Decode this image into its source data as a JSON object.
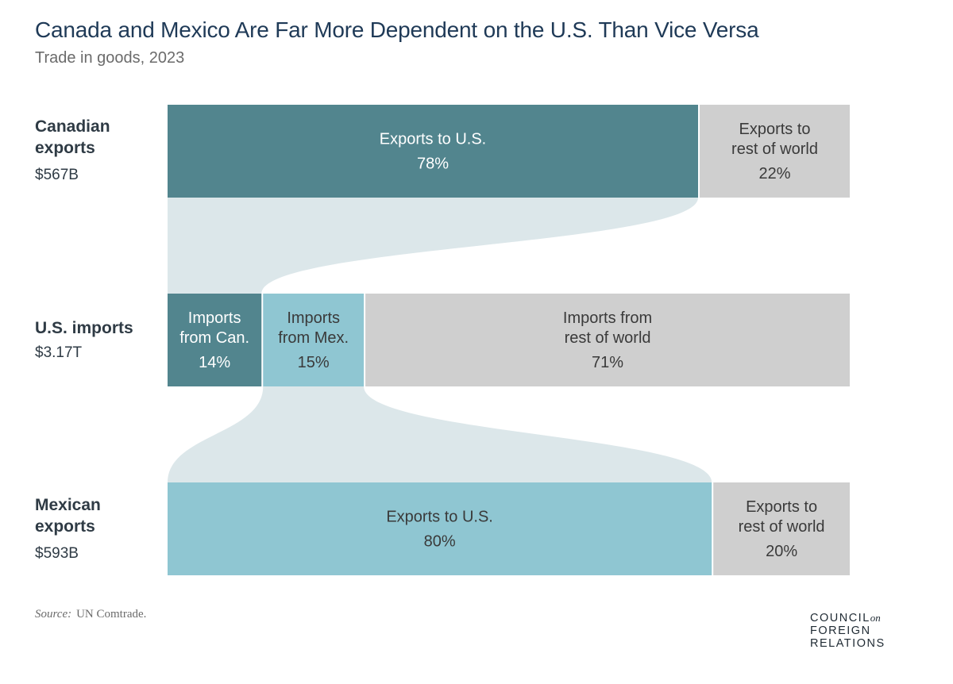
{
  "title": "Canada and Mexico Are Far More Dependent on the U.S. Than Vice Versa",
  "subtitle": "Trade in goods, 2023",
  "rows": {
    "canada": {
      "name_line1": "Canadian",
      "name_line2": "exports",
      "total": "$567B"
    },
    "us": {
      "name_line1": "U.S. imports",
      "total": "$3.17T"
    },
    "mexico": {
      "name_line1": "Mexican",
      "name_line2": "exports",
      "total": "$593B"
    }
  },
  "colors": {
    "canada_dark": "#52858e",
    "mexico_light": "#8fc6d2",
    "rest_gray": "#cfcfcf",
    "flow": "#dce7ea",
    "text_on_dark": "#ffffff",
    "text_on_light": "#3a3a3a"
  },
  "chart_data": {
    "type": "bar",
    "subtype": "stacked-100-percent-with-flows",
    "title": "Canada and Mexico Are Far More Dependent on the U.S. Than Vice Versa",
    "subtitle": "Trade in goods, 2023",
    "bars": [
      {
        "label": "Canadian exports",
        "total": "$567B",
        "segments": [
          {
            "lines": [
              "Exports to U.S."
            ],
            "pct_label": "78%",
            "value": 78,
            "color": "#52858e",
            "text_color": "#ffffff"
          },
          {
            "lines": [
              "Exports to",
              "rest of world"
            ],
            "pct_label": "22%",
            "value": 22,
            "color": "#cfcfcf",
            "text_color": "#3a3a3a"
          }
        ]
      },
      {
        "label": "U.S. imports",
        "total": "$3.17T",
        "segments": [
          {
            "lines": [
              "Imports",
              "from Can."
            ],
            "pct_label": "14%",
            "value": 14,
            "color": "#52858e",
            "text_color": "#ffffff"
          },
          {
            "lines": [
              "Imports",
              "from Mex."
            ],
            "pct_label": "15%",
            "value": 15,
            "color": "#8fc6d2",
            "text_color": "#3a3a3a"
          },
          {
            "lines": [
              "Imports from",
              "rest of world"
            ],
            "pct_label": "71%",
            "value": 71,
            "color": "#cfcfcf",
            "text_color": "#3a3a3a"
          }
        ]
      },
      {
        "label": "Mexican exports",
        "total": "$593B",
        "segments": [
          {
            "lines": [
              "Exports to U.S."
            ],
            "pct_label": "80%",
            "value": 80,
            "color": "#8fc6d2",
            "text_color": "#3a3a3a"
          },
          {
            "lines": [
              "Exports to",
              "rest of world"
            ],
            "pct_label": "20%",
            "value": 20,
            "color": "#cfcfcf",
            "text_color": "#3a3a3a"
          }
        ]
      }
    ],
    "flows": [
      {
        "from_bar": 0,
        "from_segment": 0,
        "to_bar": 1,
        "to_segment": 0
      },
      {
        "from_bar": 2,
        "from_segment": 0,
        "to_bar": 1,
        "to_segment": 1
      }
    ]
  },
  "source": {
    "label": "Source:",
    "text": "UN Comtrade."
  },
  "logo": {
    "line1": "COUNCIL",
    "on": "on",
    "line2": "FOREIGN",
    "line3": "RELATIONS"
  }
}
